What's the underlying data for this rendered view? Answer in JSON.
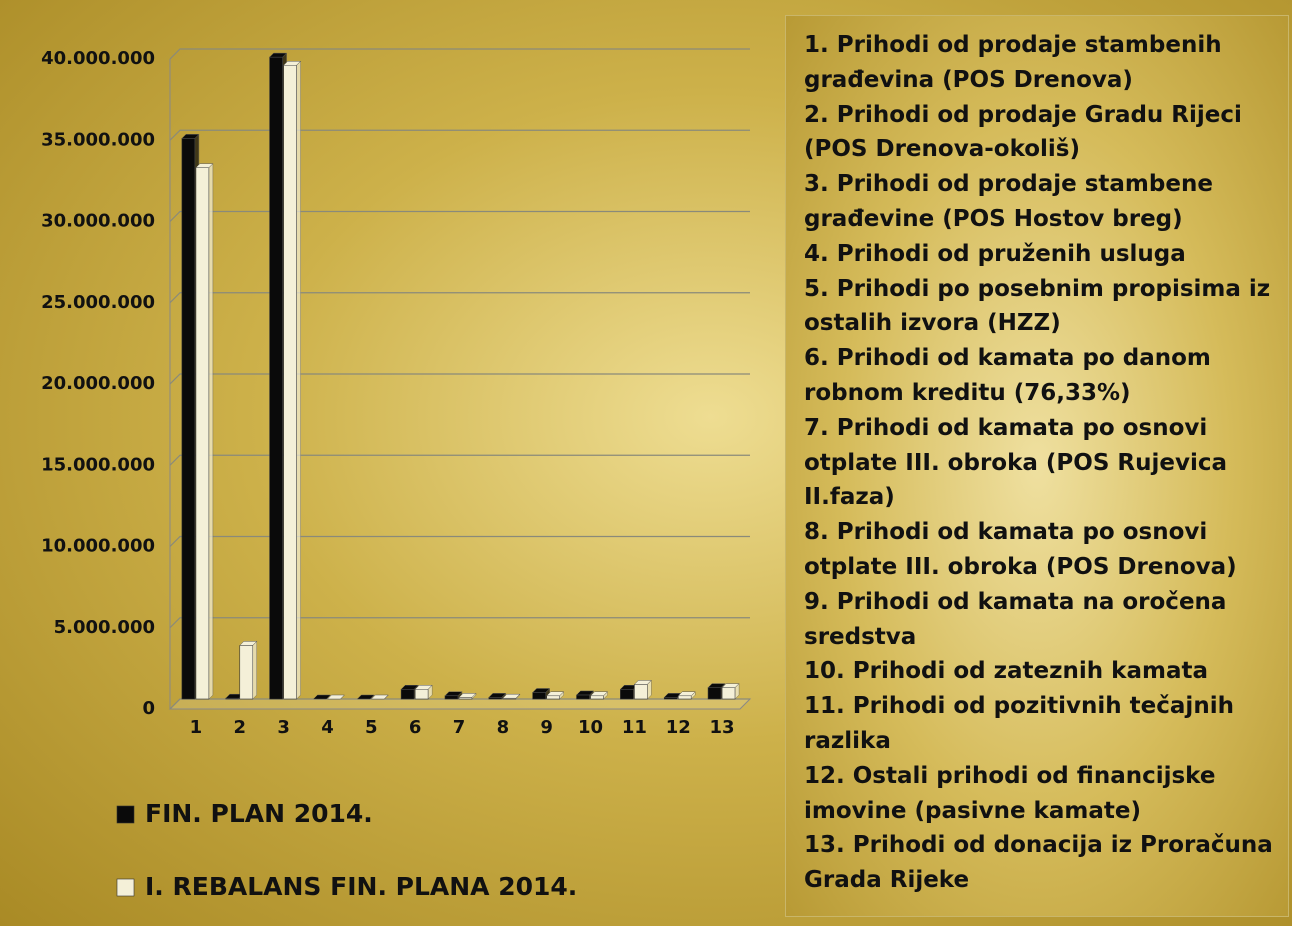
{
  "chart_data": {
    "type": "bar",
    "categories": [
      "1",
      "2",
      "3",
      "4",
      "5",
      "6",
      "7",
      "8",
      "9",
      "10",
      "11",
      "12",
      "13"
    ],
    "series": [
      {
        "name": "FIN. PLAN 2014.",
        "color": "#0a0a0a",
        "values": [
          34500000,
          50000,
          39500000,
          0,
          0,
          600000,
          200000,
          100000,
          400000,
          250000,
          600000,
          100000,
          700000
        ]
      },
      {
        "name": "I. REBALANS FIN. PLANA 2014.",
        "color": "#f4f0d8",
        "values": [
          32700000,
          3300000,
          39000000,
          0,
          0,
          600000,
          100000,
          50000,
          200000,
          200000,
          900000,
          200000,
          700000
        ]
      }
    ],
    "ylim": [
      0,
      40000000
    ],
    "yticks": [
      0,
      {
        "value": 5000000,
        "label": "5.000.000"
      },
      {
        "value": 10000000,
        "label": "10.000.000"
      },
      {
        "value": 15000000,
        "label": "15.000.000"
      },
      {
        "value": 20000000,
        "label": "20.000.000"
      },
      {
        "value": 25000000,
        "label": "25.000.000"
      },
      {
        "value": 30000000,
        "label": "30.000.000"
      },
      {
        "value": 35000000,
        "label": "35.000.000"
      },
      {
        "value": 40000000,
        "label": "40.000.000"
      }
    ],
    "grid": true,
    "category_descriptions": [
      "1. Prihodi od prodaje stambenih građevina (POS Drenova)",
      "2. Prihodi od prodaje Gradu Rijeci (POS Drenova-okoliš)",
      "3. Prihodi od prodaje stambene građevine (POS Hostov breg)",
      "4. Prihodi od pruženih usluga",
      "5. Prihodi po posebnim propisima iz ostalih izvora (HZZ)",
      "6. Prihodi od kamata po danom robnom kreditu (76,33%)",
      "7. Prihodi od kamata po osnovi otplate III. obroka (POS Rujevica II.faza)",
      "8. Prihodi od kamata po osnovi otplate III. obroka (POS Drenova)",
      "9. Prihodi od kamata na oročena sredstva",
      "10. Prihodi od zateznih kamata",
      "11. Prihodi od pozitivnih tečajnih razlika",
      "12. Ostali prihodi od financijske imovine (pasivne kamate)",
      "13. Prihodi od donacija iz Proračuna Grada Rijeke"
    ]
  }
}
